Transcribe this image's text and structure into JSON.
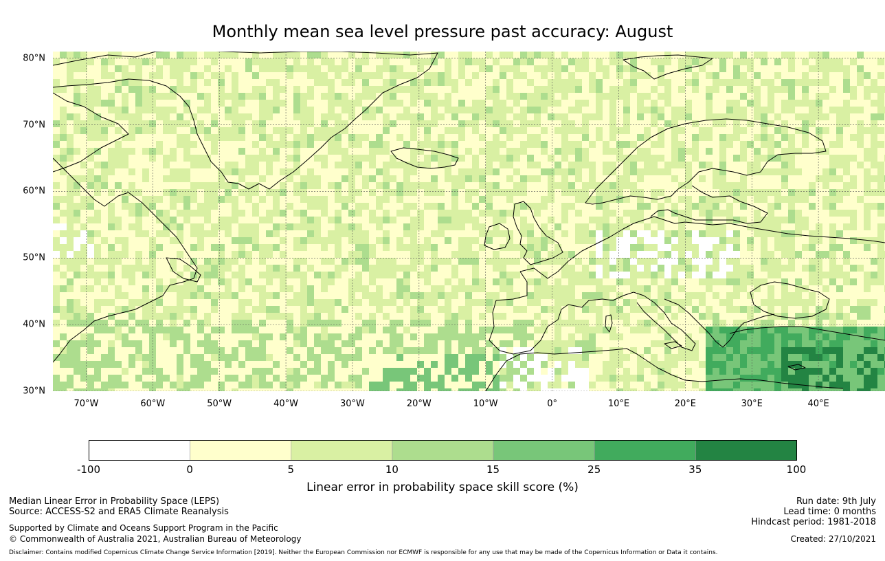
{
  "title": "Monthly mean sea level pressure past accuracy: August",
  "map": {
    "extent": {
      "lon_min": -75,
      "lon_max": 50,
      "lat_min": 30,
      "lat_max": 81
    },
    "lat_ticks": [
      {
        "value": 80,
        "label": "80°N"
      },
      {
        "value": 70,
        "label": "70°N"
      },
      {
        "value": 60,
        "label": "60°N"
      },
      {
        "value": 50,
        "label": "50°N"
      },
      {
        "value": 40,
        "label": "40°N"
      },
      {
        "value": 30,
        "label": "30°N"
      }
    ],
    "lon_ticks": [
      {
        "value": -70,
        "label": "70°W"
      },
      {
        "value": -60,
        "label": "60°W"
      },
      {
        "value": -50,
        "label": "50°W"
      },
      {
        "value": -40,
        "label": "40°W"
      },
      {
        "value": -30,
        "label": "30°W"
      },
      {
        "value": -20,
        "label": "20°W"
      },
      {
        "value": -10,
        "label": "10°W"
      },
      {
        "value": 0,
        "label": "0°"
      },
      {
        "value": 10,
        "label": "10°E"
      },
      {
        "value": 20,
        "label": "20°E"
      },
      {
        "value": 30,
        "label": "30°E"
      },
      {
        "value": 40,
        "label": "40°E"
      }
    ]
  },
  "colorbar": {
    "bounds": [
      "-100",
      "0",
      "5",
      "10",
      "15",
      "25",
      "35",
      "100"
    ],
    "colors": [
      "#ffffff",
      "#ffffcc",
      "#d9f0a3",
      "#addd8e",
      "#78c679",
      "#41ab5d",
      "#238443"
    ],
    "label": "Linear error in probability space skill score (%)"
  },
  "footer": {
    "left": {
      "line1": "Median Linear Error in Probability Space (LEPS)",
      "line2": "Source: ACCESS-S2 and ERA5 Climate Reanalysis",
      "line3": "Supported by Climate and Oceans Support Program in the Pacific",
      "line4": "© Commonwealth of Australia 2021, Australian Bureau of Meteorology"
    },
    "right": {
      "run_date": "Run date: 9th July",
      "lead_time": "Lead time: 0 months",
      "hindcast": "Hindcast period: 1981-2018",
      "created": "Created: 27/10/2021"
    },
    "disclaimer": "Disclaimer: Contains modified Copernicus Climate Change Service Information [2019]. Neither the European Commission nor ECMWF is responsible for any use that may be made of the Copernicus Information or Data it contains."
  }
}
